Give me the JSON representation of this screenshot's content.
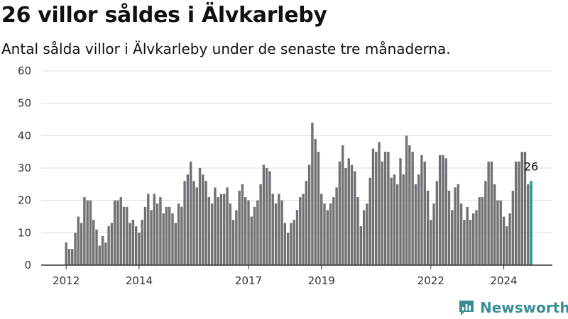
{
  "title": "26 villor såldes i Älvkarleby",
  "subtitle": "Antal sålda villor i Älvkarleby under de senaste tre månaderna.",
  "brand": {
    "name": "Newsworthy"
  },
  "colors": {
    "bar": "#717075",
    "highlight": "#1a9a91",
    "grid": "#dddddd",
    "axis": "#333333",
    "brand": "#3a8f96"
  },
  "chart_data": {
    "type": "bar",
    "ylim": [
      0,
      60
    ],
    "yticks": [
      0,
      10,
      20,
      30,
      40,
      50,
      60
    ],
    "xticks": [
      "2012",
      "2014",
      "2017",
      "2019",
      "2022",
      "2024"
    ],
    "grid": true,
    "legend": "none",
    "start": "2012-01",
    "annotation": {
      "text": "26"
    },
    "values": [
      7,
      5,
      5,
      10,
      15,
      13,
      21,
      20,
      20,
      14,
      11,
      6,
      9,
      7,
      12,
      13,
      20,
      20,
      21,
      18,
      18,
      13,
      14,
      12,
      10,
      14,
      18,
      22,
      17,
      22,
      19,
      21,
      16,
      18,
      18,
      16,
      13,
      19,
      18,
      26,
      28,
      32,
      26,
      24,
      30,
      28,
      26,
      21,
      19,
      24,
      21,
      22,
      22,
      24,
      19,
      14,
      17,
      23,
      25,
      21,
      20,
      15,
      18,
      20,
      25,
      31,
      30,
      29,
      22,
      19,
      22,
      20,
      13,
      10,
      13,
      14,
      17,
      21,
      22,
      26,
      31,
      44,
      39,
      35,
      22,
      19,
      17,
      19,
      21,
      24,
      32,
      37,
      30,
      33,
      31,
      29,
      21,
      12,
      17,
      19,
      27,
      36,
      35,
      38,
      32,
      35,
      35,
      27,
      28,
      25,
      33,
      28,
      40,
      37,
      35,
      25,
      28,
      34,
      32,
      23,
      14,
      19,
      26,
      34,
      34,
      33,
      23,
      17,
      24,
      25,
      19,
      14,
      18,
      14,
      16,
      17,
      21,
      21,
      26,
      32,
      32,
      25,
      20,
      20,
      15,
      12,
      16,
      23,
      32,
      32,
      35,
      35,
      25,
      26
    ]
  }
}
